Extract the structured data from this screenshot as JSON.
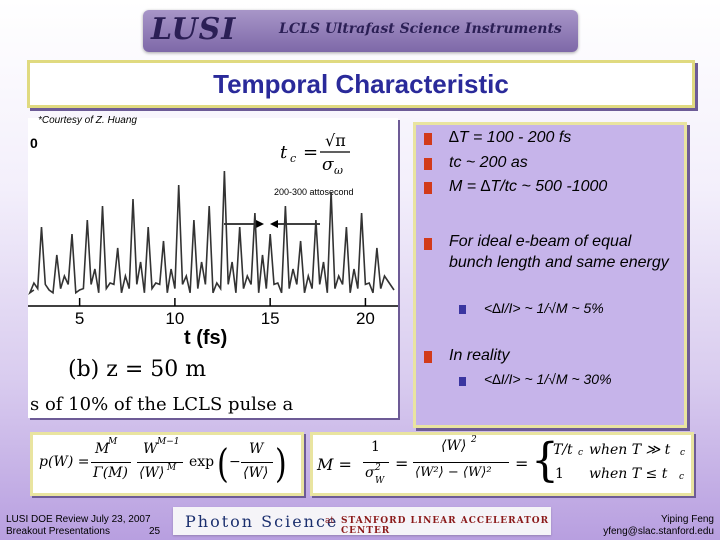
{
  "header": {
    "logo": "LUSI",
    "subtitle": "LCLS Ultrafast Science Instruments"
  },
  "title": "Temporal Characteristic",
  "credit": "*Courtesy of Z. Huang",
  "plot": {
    "annotation": "200-300 attosecond",
    "formula_tc_lhs": "t",
    "formula_tc_sub": "c",
    "formula_tc_eq": "=",
    "formula_tc_num": "√π",
    "formula_tc_den": "σ",
    "formula_tc_den_sub": "ω",
    "xlabel": "t (fs)",
    "caption": "(b)  z = 50 m",
    "footer_caption": "s of 10% of the LCLS pulse a",
    "left_tick": "0",
    "chart_data": {
      "type": "line",
      "x_ticks": [
        "5",
        "10",
        "15",
        "20"
      ],
      "xlim": [
        2.5,
        21.5
      ],
      "description_values": {
        "x": [
          2.6,
          3.0,
          3.4,
          3.8,
          4.2,
          4.6,
          5.0,
          5.4,
          5.8,
          6.2,
          6.6,
          7.0,
          7.4,
          7.8,
          8.2,
          8.6,
          9.0,
          9.4,
          9.8,
          10.2,
          10.6,
          11.0,
          11.4,
          11.8,
          12.2,
          12.6,
          13.0,
          13.4,
          13.8,
          14.2,
          14.6,
          15.0,
          15.4,
          15.8,
          16.2,
          16.6,
          17.0,
          17.4,
          17.8,
          18.2,
          18.6,
          19.0,
          19.4,
          19.8,
          20.2,
          20.6,
          21.0
        ],
        "y": [
          0.15,
          0.55,
          0.1,
          0.35,
          0.2,
          0.5,
          0.1,
          0.6,
          0.25,
          0.7,
          0.15,
          0.4,
          0.2,
          0.75,
          0.3,
          0.55,
          0.15,
          0.45,
          0.25,
          0.85,
          0.2,
          0.6,
          0.3,
          0.7,
          0.15,
          0.95,
          0.3,
          0.55,
          0.2,
          0.65,
          0.35,
          0.5,
          0.15,
          0.7,
          0.25,
          0.45,
          0.2,
          0.6,
          0.3,
          0.8,
          0.2,
          0.55,
          0.25,
          0.65,
          0.15,
          0.4,
          0.2
        ]
      }
    }
  },
  "bullets": [
    {
      "text": "∆T = 100 - 200 fs"
    },
    {
      "text": "tc ~ 200 as"
    },
    {
      "text": "M = ∆T/tc ~ 500 -1000"
    },
    {
      "text": "For ideal e-beam of equal bunch length and same energy"
    },
    {
      "text": "In reality"
    }
  ],
  "sub_bullets": [
    {
      "text": "<∆I/I> ~ 1/√M ~ 5%"
    },
    {
      "text": "<∆I/I> ~ 1/√M ~ 30%"
    }
  ],
  "formula_left": {
    "lhs": "p(W) =",
    "exp": "exp",
    "frac1_num": "M",
    "frac1_num_sup": "M",
    "frac1_den": "Γ(M)",
    "frac2_num": "W",
    "frac2_num_sup": "M−1",
    "frac2_den": "⟨W⟩",
    "frac2_den_sup": "M",
    "exp_num": "W",
    "exp_den": "⟨W⟩",
    "minus": "−"
  },
  "formula_right": {
    "lhs": "M =",
    "f1_num": "1",
    "f1_den": "σ",
    "f1_den_sup": "2",
    "f1_den_sub": "W",
    "eq": "=",
    "f2_num": "⟨W⟩",
    "f2_num_sup": "2",
    "f2_den": "⟨W²⟩ − ⟨W⟩²",
    "case1_val": "T/t",
    "case1_sub": "c",
    "case1_when": "when  T ≫ t",
    "case1_when_sub": "c",
    "case2_val": "1",
    "case2_when": "when  T ≤ t",
    "case2_when_sub": "c"
  },
  "footer": {
    "left_line1": "LUSI DOE Review July 23, 2007",
    "left_line2": "Breakout Presentations",
    "page": "25",
    "center": "Photon Science",
    "center_at": "at",
    "center_sub": "Stanford Linear Accelerator Center",
    "right_line1": "Yiping Feng",
    "right_line2": "yfeng@slac.stanford.edu"
  },
  "colors": {
    "title": "#2a2a9a",
    "bullet": "#d23a1a",
    "sub_bullet": "#3a35a0",
    "panel": "#c6b4ea"
  }
}
